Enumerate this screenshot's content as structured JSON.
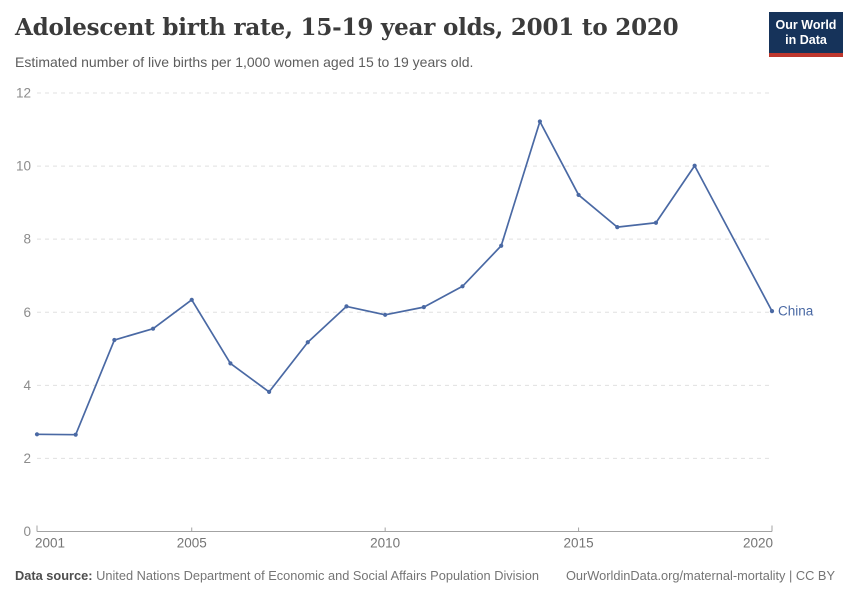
{
  "header": {
    "title": "Adolescent birth rate, 15-19 year olds, 2001 to 2020",
    "subtitle": "Estimated number of live births per 1,000 women aged 15 to 19 years old.",
    "logo": {
      "line1": "Our World",
      "line2": "in Data"
    }
  },
  "chart_data": {
    "type": "line",
    "title": "Adolescent birth rate, 15-19 year olds, 2001 to 2020",
    "x": [
      2001,
      2002,
      2003,
      2004,
      2005,
      2006,
      2007,
      2008,
      2009,
      2010,
      2011,
      2012,
      2013,
      2014,
      2015,
      2016,
      2017,
      2018,
      2020
    ],
    "series": [
      {
        "name": "China",
        "color": "#4A69A4",
        "values": [
          2.66,
          2.65,
          5.24,
          5.55,
          6.34,
          4.6,
          3.82,
          5.18,
          6.16,
          5.93,
          6.14,
          6.71,
          7.82,
          11.22,
          9.21,
          8.33,
          8.45,
          10.01,
          6.03
        ]
      }
    ],
    "xlabel": "",
    "ylabel": "",
    "xlim": [
      2001,
      2020
    ],
    "ylim": [
      0,
      12
    ],
    "yticks": [
      0,
      2,
      4,
      6,
      8,
      10,
      12
    ],
    "xticks": [
      2001,
      2005,
      2010,
      2015,
      2020
    ],
    "grid": "horizontal-dashed",
    "legend": "end-of-line-label"
  },
  "colors": {
    "series_line": "#4A69A4",
    "gridline": "#e0e0e0",
    "axis": "#a3a3a3",
    "y_tick_label": "#8c8c8c",
    "x_tick_label": "#757575",
    "title": "#3b3b3b",
    "subtitle": "#5d5d5d",
    "logo_bg": "#16335A",
    "logo_bar": "#BE372D"
  },
  "footer": {
    "datasource_label": "Data source:",
    "datasource_text": "United Nations Department of Economic and Social Affairs Population Division",
    "attribution": "OurWorldinData.org/maternal-mortality | CC BY"
  }
}
